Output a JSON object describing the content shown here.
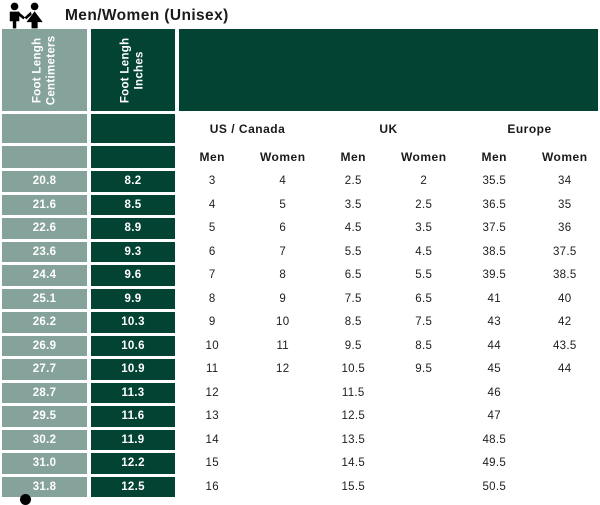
{
  "title": "Men/Women (Unisex)",
  "colors": {
    "sage": "#85A39A",
    "dark_green": "#034334",
    "title_text": "#1A1A1A",
    "light_cell_text": "#FFFFFF",
    "data_text": "#1D1D1D"
  },
  "icons": {
    "header_icon": "man-woman-pictogram",
    "bottom_icon": "partial-figure-head"
  },
  "table": {
    "cm_header": {
      "line1": "Foot Lengh",
      "line2": "Centimeters"
    },
    "in_header": {
      "line1": "Foot Lengh",
      "line2": "Inches"
    },
    "groups": [
      "US / Canada",
      "UK",
      "Europe"
    ],
    "sub_headers": [
      "Men",
      "Women",
      "Men",
      "Women",
      "Men",
      "Women"
    ]
  },
  "chart_data": {
    "type": "table",
    "title": "Men/Women (Unisex)",
    "columns": [
      "Foot Lengh Centimeters",
      "Foot Lengh Inches",
      "US / Canada Men",
      "US / Canada Women",
      "UK Men",
      "UK Women",
      "Europe Men",
      "Europe Women"
    ],
    "rows": [
      [
        "20.8",
        "8.2",
        "3",
        "4",
        "2.5",
        "2",
        "35.5",
        "34"
      ],
      [
        "21.6",
        "8.5",
        "4",
        "5",
        "3.5",
        "2.5",
        "36.5",
        "35"
      ],
      [
        "22.6",
        "8.9",
        "5",
        "6",
        "4.5",
        "3.5",
        "37.5",
        "36"
      ],
      [
        "23.6",
        "9.3",
        "6",
        "7",
        "5.5",
        "4.5",
        "38.5",
        "37.5"
      ],
      [
        "24.4",
        "9.6",
        "7",
        "8",
        "6.5",
        "5.5",
        "39.5",
        "38.5"
      ],
      [
        "25.1",
        "9.9",
        "8",
        "9",
        "7.5",
        "6.5",
        "41",
        "40"
      ],
      [
        "26.2",
        "10.3",
        "9",
        "10",
        "8.5",
        "7.5",
        "43",
        "42"
      ],
      [
        "26.9",
        "10.6",
        "10",
        "11",
        "9.5",
        "8.5",
        "44",
        "43.5"
      ],
      [
        "27.7",
        "10.9",
        "11",
        "12",
        "10.5",
        "9.5",
        "45",
        "44"
      ],
      [
        "28.7",
        "11.3",
        "12",
        "",
        "11.5",
        "",
        "46",
        ""
      ],
      [
        "29.5",
        "11.6",
        "13",
        "",
        "12.5",
        "",
        "47",
        ""
      ],
      [
        "30.2",
        "11.9",
        "14",
        "",
        "13.5",
        "",
        "48.5",
        ""
      ],
      [
        "31.0",
        "12.2",
        "15",
        "",
        "14.5",
        "",
        "49.5",
        ""
      ],
      [
        "31.8",
        "12.5",
        "16",
        "",
        "15.5",
        "",
        "50.5",
        ""
      ]
    ]
  }
}
